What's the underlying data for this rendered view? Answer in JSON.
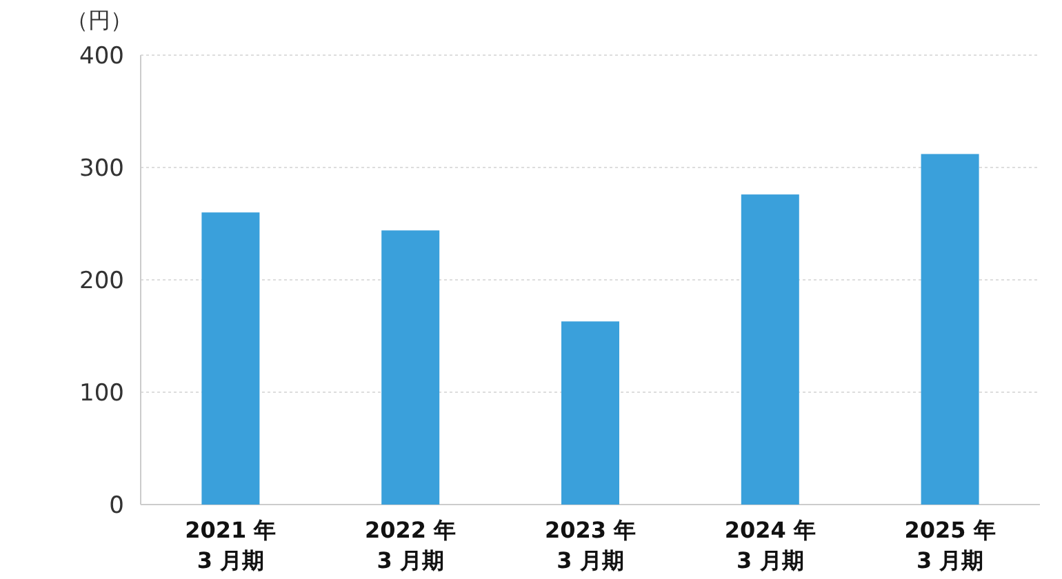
{
  "chart_data": {
    "type": "bar",
    "ylabel": "（円）",
    "categories": [
      "2021 年\n3 月期",
      "2022 年\n3 月期",
      "2023 年\n3 月期",
      "2024 年\n3 月期",
      "2025 年\n3 月期"
    ],
    "values": [
      260,
      244,
      163,
      276,
      312
    ],
    "color": "#3aa0db",
    "ylim": [
      0,
      400
    ],
    "yticks": [
      0,
      100,
      200,
      300,
      400
    ],
    "grid": "y"
  }
}
